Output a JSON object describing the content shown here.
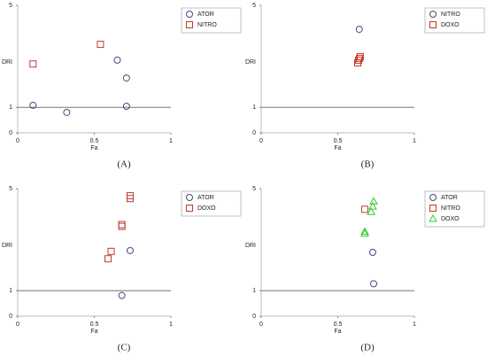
{
  "chart_data": [
    {
      "type": "scatter",
      "label": "(A)",
      "xlabel": "Fa",
      "ylabel": "DRI",
      "xlim": [
        0,
        1
      ],
      "ylim": [
        0,
        5
      ],
      "xticks": [
        0,
        0.5,
        1
      ],
      "yticks": [
        0,
        1,
        5
      ],
      "reference_line": 1,
      "series": [
        {
          "name": "ATOR",
          "marker": "circle",
          "color": "#3d4a80",
          "x": [
            0.1,
            0.32,
            0.65,
            0.71,
            0.71
          ],
          "values": [
            1.08,
            0.8,
            2.85,
            2.15,
            1.04
          ]
        },
        {
          "name": "NITRO",
          "marker": "square",
          "color": "#c0392b",
          "x": [
            0.1,
            0.54
          ],
          "values": [
            2.7,
            3.47
          ]
        }
      ]
    },
    {
      "type": "scatter",
      "label": "(B)",
      "xlabel": "Fa",
      "ylabel": "DRI",
      "xlim": [
        0,
        1
      ],
      "ylim": [
        0,
        5
      ],
      "xticks": [
        0,
        0.5,
        1
      ],
      "yticks": [
        0,
        1,
        5
      ],
      "reference_line": 1,
      "series": [
        {
          "name": "NITRO",
          "marker": "circle",
          "color": "#3d4a80",
          "x": [
            0.64
          ],
          "values": [
            4.06
          ]
        },
        {
          "name": "DOXO",
          "marker": "square",
          "color": "#c0392b",
          "x": [
            0.647,
            0.642,
            0.636,
            0.63
          ],
          "values": [
            2.99,
            2.92,
            2.85,
            2.74
          ]
        }
      ]
    },
    {
      "type": "scatter",
      "label": "(C)",
      "xlabel": "Fa",
      "ylabel": "DRI",
      "xlim": [
        0,
        1
      ],
      "ylim": [
        0,
        5
      ],
      "xticks": [
        0,
        0.5,
        1
      ],
      "yticks": [
        0,
        1,
        5
      ],
      "reference_line": 1,
      "series": [
        {
          "name": "ATOR",
          "marker": "circle",
          "color": "#3d4a80",
          "x": [
            0.734,
            0.68
          ],
          "values": [
            2.57,
            0.81
          ]
        },
        {
          "name": "DOXO",
          "marker": "square",
          "color": "#c0392b",
          "x": [
            0.734,
            0.734,
            0.68,
            0.68,
            0.61,
            0.59
          ],
          "values": [
            4.72,
            4.61,
            3.59,
            3.52,
            2.54,
            2.25
          ]
        }
      ]
    },
    {
      "type": "scatter",
      "label": "(D)",
      "xlabel": "Fa",
      "ylabel": "DRI",
      "xlim": [
        0,
        1
      ],
      "ylim": [
        0,
        5
      ],
      "xticks": [
        0,
        0.5,
        1
      ],
      "yticks": [
        0,
        1,
        5
      ],
      "reference_line": 1,
      "series": [
        {
          "name": "ATOR",
          "marker": "circle",
          "color": "#3d4a80",
          "x": [
            0.728,
            0.734
          ],
          "values": [
            2.5,
            1.27
          ]
        },
        {
          "name": "NITRO",
          "marker": "square",
          "color": "#c0392b",
          "x": [
            0.676
          ],
          "values": [
            4.19
          ]
        },
        {
          "name": "DOXO",
          "marker": "triangle",
          "color": "#33cc33",
          "x": [
            0.734,
            0.728,
            0.717,
            0.676,
            0.676
          ],
          "values": [
            4.5,
            4.3,
            4.09,
            3.31,
            3.24
          ]
        }
      ]
    }
  ]
}
